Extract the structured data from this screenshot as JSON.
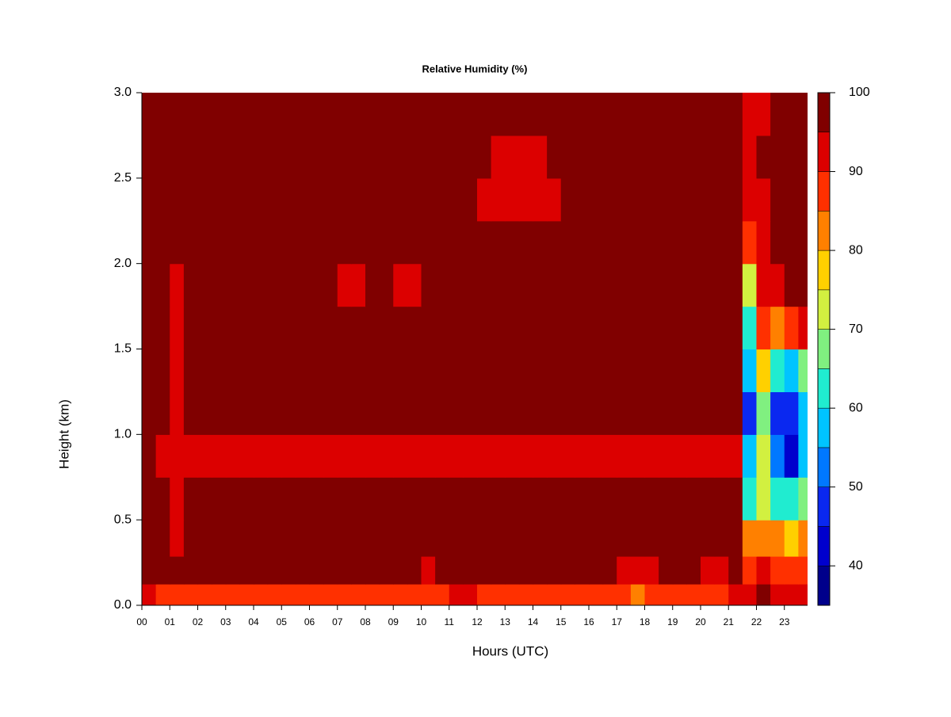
{
  "chart_data": {
    "type": "heatmap",
    "title": "Relative Humidity (%)",
    "x_label": "Hours (UTC)",
    "y_label": "Height (km)",
    "x": [
      0.25,
      0.75,
      1.25,
      1.75,
      2.25,
      2.75,
      3.25,
      3.75,
      4.25,
      4.75,
      5.25,
      5.75,
      6.25,
      6.75,
      7.25,
      7.75,
      8.25,
      8.75,
      9.25,
      9.75,
      10.25,
      10.75,
      11.25,
      11.75,
      12.25,
      12.75,
      13.25,
      13.75,
      14.25,
      14.75,
      15.25,
      15.75,
      16.25,
      16.75,
      17.25,
      17.75,
      18.25,
      18.75,
      19.25,
      19.75,
      20.25,
      20.75,
      21.25,
      21.75,
      22.25,
      22.75,
      23.25,
      23.75
    ],
    "y": [
      0.05,
      0.2,
      0.375,
      0.625,
      0.875,
      1.125,
      1.375,
      1.625,
      1.875,
      2.125,
      2.375,
      2.625,
      2.875
    ],
    "z": [
      [
        90,
        88,
        88,
        88,
        88,
        88,
        88,
        88,
        88,
        88,
        88,
        88,
        88,
        88,
        88,
        88,
        88,
        88,
        88,
        88,
        85,
        88,
        90,
        90,
        88,
        88,
        88,
        88,
        88,
        88,
        88,
        88,
        88,
        88,
        85,
        80,
        85,
        85,
        88,
        88,
        85,
        85,
        93,
        93,
        95,
        93,
        93,
        93
      ],
      [
        97,
        97,
        97,
        97,
        97,
        97,
        97,
        97,
        97,
        97,
        97,
        97,
        97,
        97,
        97,
        97,
        97,
        97,
        97,
        97,
        92,
        97,
        97,
        97,
        97,
        97,
        97,
        97,
        97,
        97,
        97,
        97,
        97,
        97,
        93,
        93,
        93,
        97,
        97,
        97,
        93,
        93,
        97,
        88,
        90,
        88,
        88,
        88
      ],
      [
        97,
        97,
        93,
        97,
        97,
        97,
        97,
        97,
        97,
        97,
        97,
        97,
        97,
        97,
        97,
        97,
        97,
        97,
        97,
        97,
        97,
        97,
        97,
        97,
        97,
        97,
        97,
        97,
        97,
        97,
        97,
        97,
        97,
        97,
        97,
        97,
        97,
        97,
        97,
        97,
        97,
        97,
        97,
        80,
        82,
        80,
        78,
        80
      ],
      [
        97,
        97,
        92,
        95,
        97,
        97,
        97,
        97,
        97,
        97,
        97,
        97,
        97,
        97,
        97,
        97,
        97,
        97,
        97,
        95,
        97,
        97,
        97,
        97,
        97,
        97,
        97,
        97,
        97,
        97,
        97,
        97,
        97,
        97,
        97,
        97,
        97,
        97,
        97,
        97,
        97,
        97,
        97,
        62,
        72,
        60,
        62,
        65
      ],
      [
        95,
        93,
        90,
        93,
        93,
        93,
        93,
        93,
        93,
        93,
        93,
        93,
        93,
        92,
        92,
        93,
        93,
        93,
        92,
        92,
        93,
        93,
        93,
        93,
        93,
        93,
        92,
        92,
        93,
        93,
        93,
        93,
        92,
        93,
        93,
        93,
        93,
        93,
        93,
        93,
        93,
        93,
        93,
        58,
        70,
        50,
        42,
        55
      ],
      [
        97,
        97,
        93,
        97,
        97,
        97,
        97,
        97,
        97,
        97,
        95,
        97,
        97,
        97,
        97,
        97,
        97,
        95,
        95,
        97,
        97,
        97,
        97,
        97,
        97,
        97,
        97,
        97,
        97,
        97,
        97,
        97,
        97,
        97,
        97,
        97,
        97,
        97,
        97,
        97,
        97,
        97,
        97,
        45,
        68,
        48,
        45,
        55
      ],
      [
        97,
        97,
        92,
        97,
        97,
        97,
        97,
        97,
        97,
        97,
        97,
        97,
        97,
        97,
        97,
        97,
        97,
        97,
        97,
        97,
        97,
        97,
        97,
        97,
        97,
        97,
        97,
        97,
        97,
        97,
        97,
        97,
        97,
        97,
        97,
        97,
        97,
        97,
        97,
        97,
        97,
        97,
        97,
        55,
        75,
        60,
        58,
        68
      ],
      [
        97,
        97,
        90,
        97,
        97,
        97,
        97,
        97,
        97,
        97,
        97,
        97,
        97,
        97,
        97,
        97,
        97,
        97,
        97,
        97,
        97,
        97,
        97,
        97,
        97,
        97,
        97,
        97,
        97,
        97,
        97,
        97,
        97,
        97,
        97,
        97,
        97,
        97,
        97,
        97,
        97,
        97,
        97,
        62,
        85,
        80,
        85,
        90
      ],
      [
        97,
        97,
        92,
        97,
        97,
        97,
        97,
        97,
        95,
        95,
        95,
        95,
        95,
        95,
        94,
        94,
        95,
        95,
        94,
        94,
        95,
        95,
        95,
        95,
        95,
        97,
        97,
        97,
        97,
        97,
        97,
        97,
        97,
        97,
        97,
        97,
        97,
        97,
        97,
        97,
        97,
        95,
        97,
        70,
        90,
        93,
        97,
        97
      ],
      [
        97,
        97,
        95,
        97,
        97,
        97,
        97,
        97,
        97,
        97,
        97,
        97,
        97,
        97,
        97,
        97,
        97,
        97,
        97,
        97,
        97,
        97,
        97,
        97,
        97,
        97,
        97,
        97,
        97,
        97,
        97,
        97,
        97,
        97,
        97,
        97,
        97,
        97,
        97,
        97,
        97,
        97,
        97,
        88,
        92,
        97,
        97,
        97
      ],
      [
        97,
        97,
        97,
        97,
        97,
        97,
        97,
        97,
        97,
        97,
        95,
        95,
        97,
        97,
        97,
        97,
        97,
        97,
        97,
        97,
        97,
        97,
        97,
        97,
        94,
        94,
        94,
        94,
        94,
        94,
        97,
        97,
        97,
        97,
        97,
        97,
        97,
        97,
        97,
        97,
        97,
        97,
        97,
        90,
        93,
        97,
        97,
        97
      ],
      [
        97,
        97,
        97,
        97,
        97,
        97,
        97,
        97,
        97,
        97,
        97,
        97,
        97,
        97,
        97,
        97,
        97,
        97,
        97,
        97,
        97,
        97,
        97,
        97,
        97,
        94,
        94,
        94,
        94,
        97,
        97,
        97,
        97,
        97,
        97,
        97,
        97,
        97,
        97,
        97,
        97,
        97,
        97,
        93,
        95,
        97,
        97,
        97
      ],
      [
        97,
        97,
        97,
        97,
        97,
        97,
        97,
        97,
        97,
        97,
        95,
        95,
        97,
        97,
        97,
        97,
        97,
        97,
        97,
        97,
        97,
        97,
        97,
        97,
        95,
        95,
        95,
        95,
        95,
        95,
        95,
        95,
        95,
        95,
        97,
        97,
        97,
        97,
        97,
        97,
        97,
        97,
        97,
        93,
        93,
        97,
        97,
        97
      ]
    ],
    "xlim": [
      0,
      23.83
    ],
    "ylim": [
      0,
      3
    ],
    "xticks": [
      {
        "value": 0,
        "label": "00"
      },
      {
        "value": 1,
        "label": "01"
      },
      {
        "value": 2,
        "label": "02"
      },
      {
        "value": 3,
        "label": "03"
      },
      {
        "value": 4,
        "label": "04"
      },
      {
        "value": 5,
        "label": "05"
      },
      {
        "value": 6,
        "label": "06"
      },
      {
        "value": 7,
        "label": "07"
      },
      {
        "value": 8,
        "label": "08"
      },
      {
        "value": 9,
        "label": "09"
      },
      {
        "value": 10,
        "label": "10"
      },
      {
        "value": 11,
        "label": "11"
      },
      {
        "value": 12,
        "label": "12"
      },
      {
        "value": 13,
        "label": "13"
      },
      {
        "value": 14,
        "label": "14"
      },
      {
        "value": 15,
        "label": "15"
      },
      {
        "value": 16,
        "label": "16"
      },
      {
        "value": 17,
        "label": "17"
      },
      {
        "value": 18,
        "label": "18"
      },
      {
        "value": 19,
        "label": "19"
      },
      {
        "value": 20,
        "label": "20"
      },
      {
        "value": 21,
        "label": "21"
      },
      {
        "value": 22,
        "label": "22"
      },
      {
        "value": 23,
        "label": "23"
      }
    ],
    "yticks": [
      {
        "value": 0,
        "label": "0.0"
      },
      0.5,
      {
        "value": 1,
        "label": "1.0"
      },
      1.5,
      {
        "value": 2,
        "label": "2.0"
      },
      2.5,
      {
        "value": 3,
        "label": "3.0"
      }
    ],
    "levels": [
      35,
      40,
      45,
      50,
      55,
      60,
      65,
      70,
      75,
      80,
      85,
      90,
      95,
      100
    ],
    "colors": [
      "#00008b",
      "#0000cd",
      "#0a28f0",
      "#0078ff",
      "#00c4ff",
      "#20ecd0",
      "#80f080",
      "#d2f040",
      "#ffd000",
      "#ff8000",
      "#ff3000",
      "#dc0000",
      "#800000"
    ],
    "zlim": [
      35,
      100
    ],
    "zticks": [
      40,
      50,
      60,
      70,
      80,
      90,
      100
    ]
  }
}
